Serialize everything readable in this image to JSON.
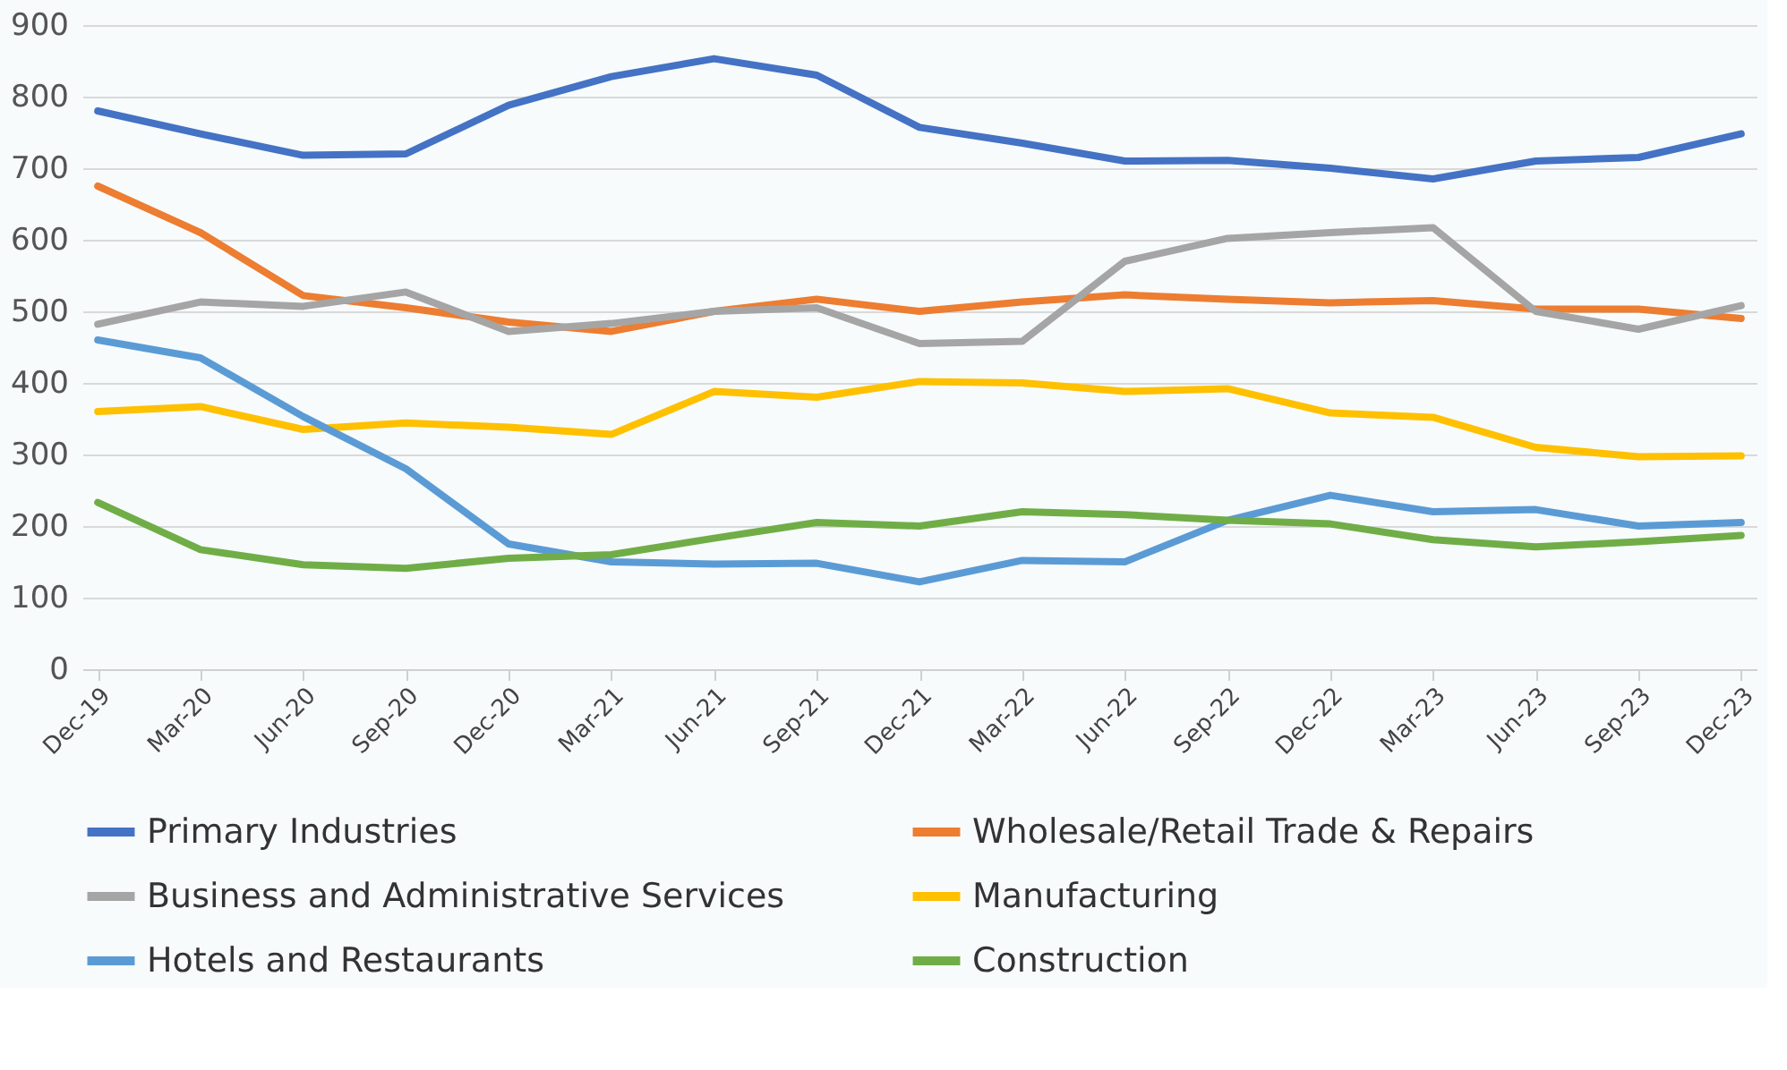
{
  "chart_data": {
    "type": "line",
    "categories": [
      "Dec-19",
      "Mar-20",
      "Jun-20",
      "Sep-20",
      "Dec-20",
      "Mar-21",
      "Jun-21",
      "Sep-21",
      "Dec-21",
      "Mar-22",
      "Jun-22",
      "Sep-22",
      "Dec-22",
      "Mar-23",
      "Jun-23",
      "Sep-23",
      "Dec-23"
    ],
    "series": [
      {
        "name": "Primary Industries",
        "color": "#4472c4",
        "values": [
          780,
          748,
          718,
          720,
          788,
          828,
          853,
          830,
          757,
          735,
          710,
          711,
          700,
          685,
          710,
          715,
          748
        ]
      },
      {
        "name": "Wholesale/Retail Trade & Repairs",
        "color": "#ed7d31",
        "values": [
          675,
          610,
          522,
          505,
          485,
          472,
          500,
          517,
          500,
          513,
          523,
          517,
          512,
          515,
          503,
          503,
          490
        ]
      },
      {
        "name": "Business and Administrative Services",
        "color": "#a5a5a5",
        "values": [
          482,
          513,
          507,
          527,
          472,
          483,
          500,
          505,
          455,
          458,
          570,
          602,
          610,
          617,
          500,
          475,
          508
        ]
      },
      {
        "name": "Manufacturing",
        "color": "#ffc000",
        "values": [
          360,
          367,
          335,
          344,
          338,
          328,
          388,
          380,
          402,
          400,
          388,
          392,
          358,
          352,
          310,
          297,
          298
        ]
      },
      {
        "name": "Hotels and Restaurants",
        "color": "#5b9bd5",
        "values": [
          460,
          435,
          353,
          280,
          175,
          150,
          147,
          148,
          122,
          152,
          150,
          208,
          243,
          220,
          223,
          200,
          205
        ]
      },
      {
        "name": "Construction",
        "color": "#70ad47",
        "values": [
          233,
          167,
          146,
          141,
          155,
          160,
          183,
          205,
          200,
          220,
          216,
          208,
          203,
          181,
          171,
          178,
          187
        ]
      }
    ],
    "ylim": [
      0,
      900
    ],
    "yticks": [
      0,
      100,
      200,
      300,
      400,
      500,
      600,
      700,
      800,
      900
    ],
    "grid": "y",
    "legend": "bottom",
    "marker": "none",
    "line_style": "solid"
  }
}
